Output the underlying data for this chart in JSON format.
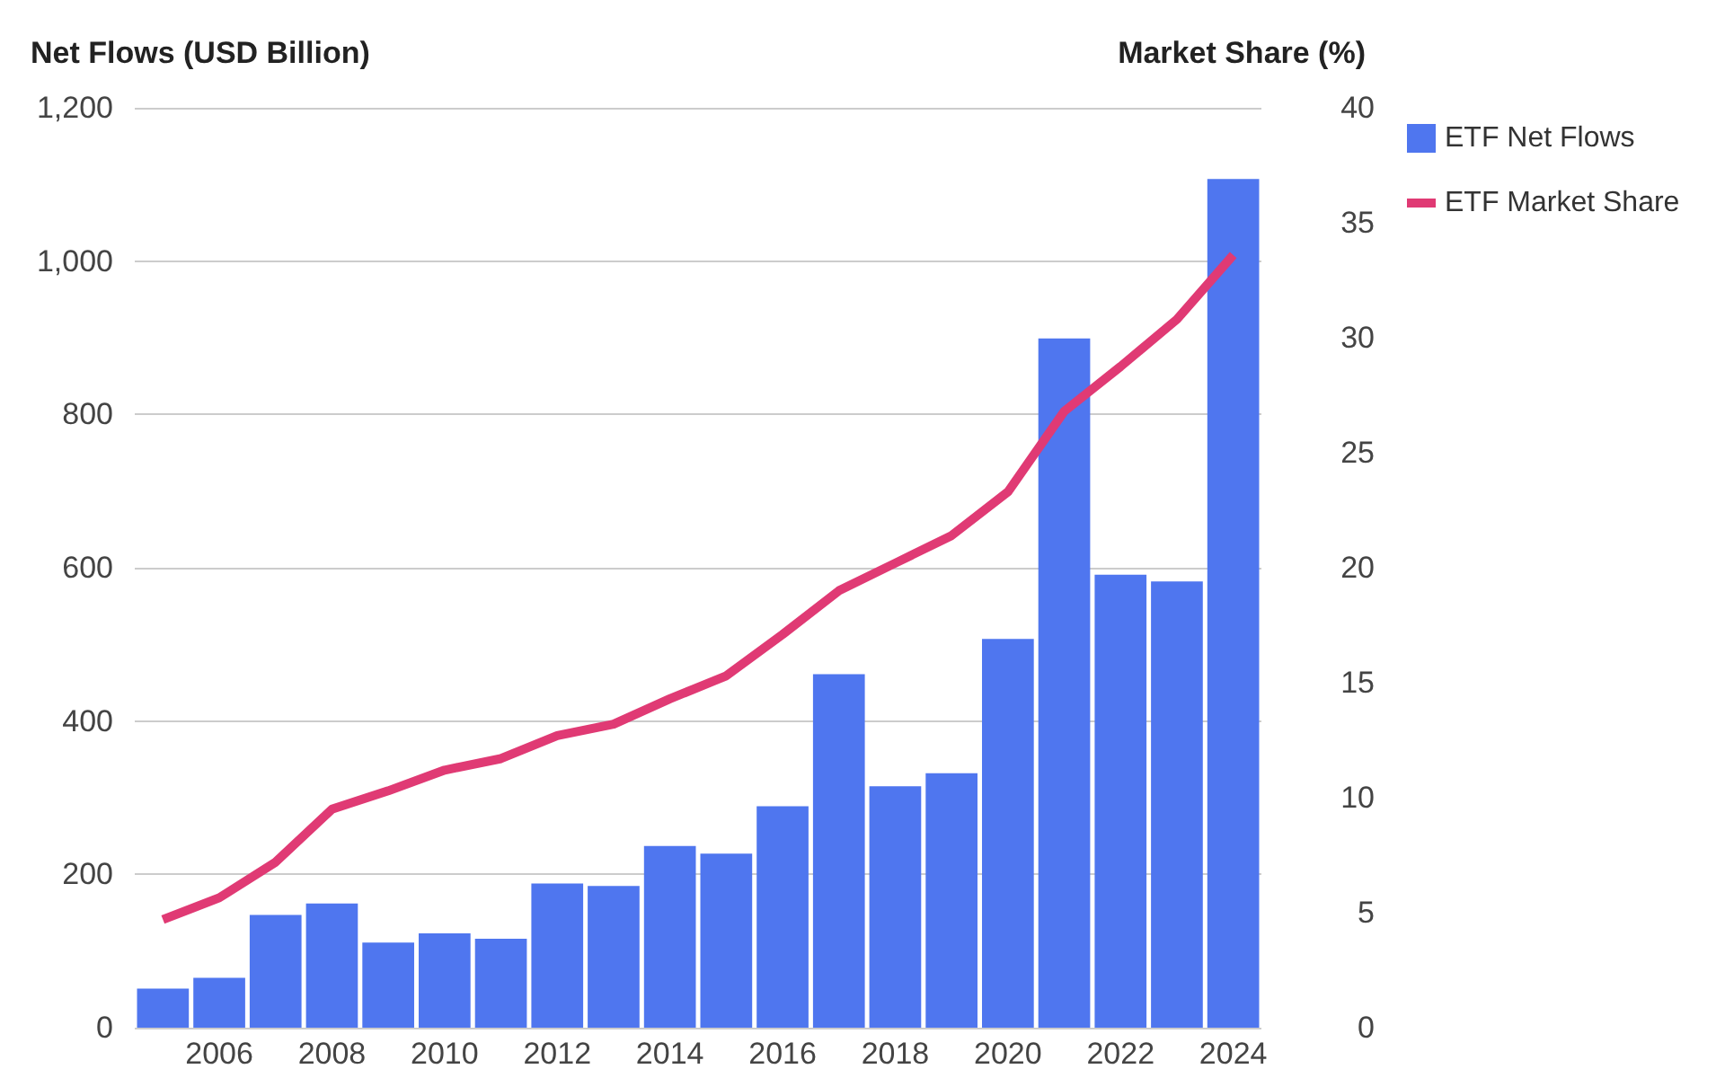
{
  "chart_data": {
    "type": "bar",
    "ylabel": "Net Flows (USD Billion)",
    "y2label": "Market Share (%)",
    "categories": [
      null,
      "2006",
      null,
      "2008",
      null,
      "2010",
      null,
      "2012",
      null,
      "2014",
      null,
      "2016",
      null,
      "2018",
      null,
      "2020",
      null,
      "2022",
      null,
      "2024"
    ],
    "series": [
      {
        "name": "ETF Net Flows",
        "color": "#4f76ef",
        "values": [
          51,
          65,
          147,
          162,
          111,
          123,
          116,
          188,
          185,
          237,
          227,
          289,
          461,
          315,
          332,
          507,
          899,
          591,
          582,
          1107
        ]
      },
      {
        "name": "ETF Market Share",
        "type": "line",
        "axis": "y2",
        "color": "#e03a74",
        "values": [
          4.7,
          5.65,
          7.2,
          9.5,
          10.3,
          11.2,
          11.7,
          12.7,
          13.2,
          14.3,
          15.3,
          17.1,
          19.0,
          20.2,
          21.4,
          23.3,
          26.8,
          28.75,
          30.8,
          33.6
        ]
      }
    ],
    "ylim": [
      0,
      1200
    ],
    "yticks": [
      0,
      200,
      400,
      600,
      800,
      {
        "value": 1000,
        "label": "1,000"
      },
      {
        "value": 1200,
        "label": "1,200"
      }
    ],
    "y2lim": [
      0,
      40
    ],
    "y2ticks": [
      0,
      5,
      10,
      15,
      20,
      25,
      30,
      35,
      40
    ],
    "grid": "y",
    "legend": "top right",
    "marker": "none"
  }
}
